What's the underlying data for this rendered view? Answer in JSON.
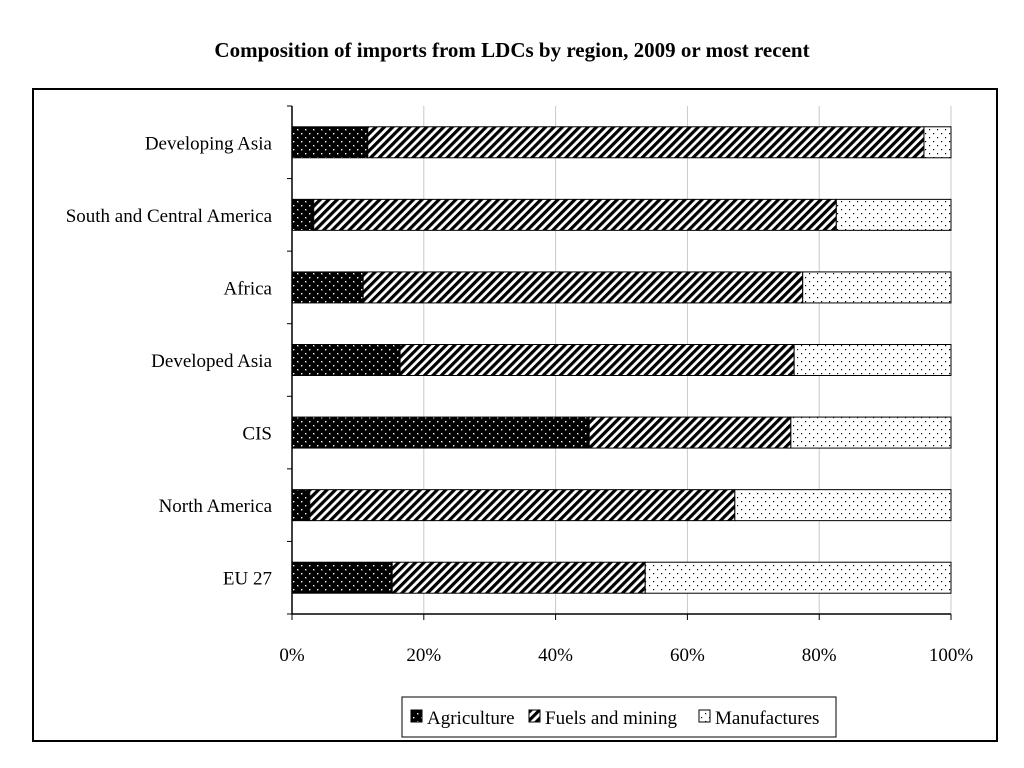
{
  "chart_data": {
    "type": "bar",
    "orientation": "horizontal",
    "stacked": "percent",
    "title": "Composition of imports from LDCs by region, 2009 or most recent",
    "categories": [
      "Developing Asia",
      "South and Central America",
      "Africa",
      "Developed Asia",
      "CIS",
      "North America",
      "EU 27"
    ],
    "series": [
      {
        "name": "Agriculture",
        "pattern": "dots-on-black",
        "values": [
          11.5,
          3.3,
          10.8,
          16.4,
          45.1,
          2.7,
          15.2
        ]
      },
      {
        "name": "Fuels and mining",
        "pattern": "diagonal-hatch",
        "values": [
          84.4,
          79.3,
          66.7,
          59.8,
          30.6,
          64.5,
          38.4
        ]
      },
      {
        "name": "Manufactures",
        "pattern": "dots-on-white",
        "values": [
          4.1,
          17.4,
          22.5,
          23.8,
          24.3,
          32.8,
          46.4
        ]
      }
    ],
    "xticks": [
      "0%",
      "20%",
      "40%",
      "60%",
      "80%",
      "100%"
    ],
    "xlim": [
      0,
      100
    ],
    "grid": "vertical",
    "legend": "bottom"
  }
}
